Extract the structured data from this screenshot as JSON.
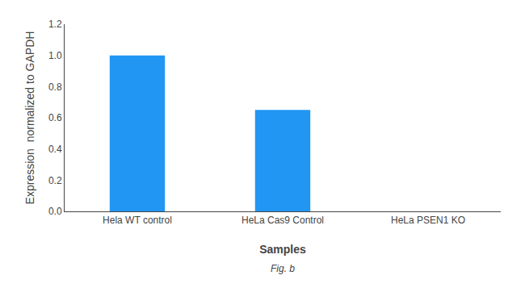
{
  "chart_data": {
    "type": "bar",
    "categories": [
      "Hela WT control",
      "HeLa Cas9 Control",
      "HeLa PSEN1 KO"
    ],
    "values": [
      1.0,
      0.65,
      0.0
    ],
    "color": "#2196F3",
    "xlabel": "Samples",
    "ylabel": "Expression  normalized to GAPDH",
    "ylim": [
      0,
      1.2
    ],
    "yticks": [
      {
        "value": 0,
        "label": "0.0"
      },
      0.2,
      0.4,
      0.6,
      0.8,
      {
        "value": 1.0,
        "label": "1.0"
      },
      1.2
    ],
    "grid": false,
    "annotations": [
      "Fig. b"
    ]
  }
}
